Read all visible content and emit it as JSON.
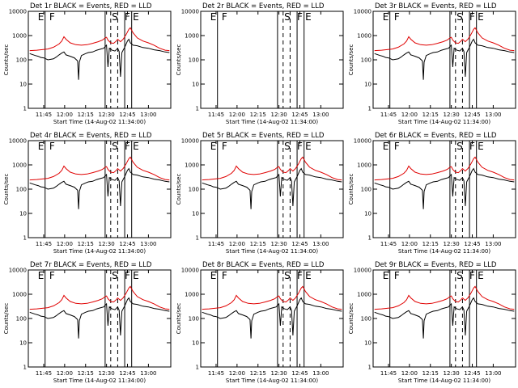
{
  "chart_data": [
    {
      "type": "line",
      "title": "Det 1r  BLACK = Events, RED = LLD",
      "ylabel": "Counts/sec",
      "xlabel": "Start Time (14-Aug-02 11:34:00)",
      "yscale": "log",
      "ylim": [
        1,
        10000
      ],
      "x_ticks": [
        "11:45",
        "12:00",
        "12:15",
        "12:30",
        "12:45",
        "13:00"
      ],
      "y_ticks": [
        "1",
        "10",
        "100",
        "1000",
        "10000"
      ],
      "markers": [
        "E",
        "F",
        "S",
        "F",
        "E"
      ],
      "series": [
        {
          "name": "Events",
          "color": "#000000"
        },
        {
          "name": "LLD",
          "color": "#e00000"
        }
      ]
    },
    {
      "type": "line",
      "title": "Det 2r  BLACK = Events, RED = LLD",
      "ylabel": "Counts/sec",
      "xlabel": "Start Time (14-Aug-02 11:34:00)",
      "yscale": "log",
      "ylim": [
        1,
        10000
      ],
      "x_ticks": [
        "11:45",
        "12:00",
        "12:15",
        "12:30",
        "12:45",
        "13:00"
      ],
      "y_ticks": [
        "1",
        "10",
        "100",
        "1000",
        "10000"
      ],
      "markers": [
        "E",
        "F",
        "S",
        "F",
        "E"
      ],
      "series": []
    },
    {
      "type": "line",
      "title": "Det 3r  BLACK = Events, RED = LLD",
      "ylabel": "Counts/sec",
      "xlabel": "Start Time (14-Aug-02 11:34:00)",
      "yscale": "log",
      "ylim": [
        1,
        10000
      ],
      "x_ticks": [
        "11:45",
        "12:00",
        "12:15",
        "12:30",
        "12:45",
        "13:00"
      ],
      "y_ticks": [
        "1",
        "10",
        "100",
        "1000",
        "10000"
      ],
      "markers": [
        "E",
        "F",
        "S",
        "F",
        "E"
      ],
      "series": [
        {
          "name": "Events",
          "color": "#000000"
        },
        {
          "name": "LLD",
          "color": "#e00000"
        }
      ]
    },
    {
      "type": "line",
      "title": "Det 4r  BLACK = Events, RED = LLD",
      "ylabel": "Counts/sec",
      "xlabel": "Start Time (14-Aug-02 11:34:00)",
      "yscale": "log",
      "ylim": [
        1,
        10000
      ],
      "x_ticks": [
        "11:45",
        "12:00",
        "12:15",
        "12:30",
        "12:45",
        "13:00"
      ],
      "y_ticks": [
        "1",
        "10",
        "100",
        "1000",
        "10000"
      ],
      "markers": [
        "E",
        "F",
        "S",
        "F",
        "E"
      ],
      "series": [
        {
          "name": "Events",
          "color": "#000000"
        },
        {
          "name": "LLD",
          "color": "#e00000"
        }
      ]
    },
    {
      "type": "line",
      "title": "Det 5r  BLACK = Events, RED = LLD",
      "ylabel": "Counts/sec",
      "xlabel": "Start Time (14-Aug-02 11:34:00)",
      "yscale": "log",
      "ylim": [
        1,
        10000
      ],
      "x_ticks": [
        "11:45",
        "12:00",
        "12:15",
        "12:30",
        "12:45",
        "13:00"
      ],
      "y_ticks": [
        "1",
        "10",
        "100",
        "1000",
        "10000"
      ],
      "markers": [
        "E",
        "F",
        "S",
        "F",
        "E"
      ],
      "series": [
        {
          "name": "Events",
          "color": "#000000"
        },
        {
          "name": "LLD",
          "color": "#e00000"
        }
      ]
    },
    {
      "type": "line",
      "title": "Det 6r  BLACK = Events, RED = LLD",
      "ylabel": "Counts/sec",
      "xlabel": "Start Time (14-Aug-02 11:34:00)",
      "yscale": "log",
      "ylim": [
        1,
        10000
      ],
      "x_ticks": [
        "11:45",
        "12:00",
        "12:15",
        "12:30",
        "12:45",
        "13:00"
      ],
      "y_ticks": [
        "1",
        "10",
        "100",
        "1000",
        "10000"
      ],
      "markers": [
        "E",
        "F",
        "S",
        "F",
        "E"
      ],
      "series": [
        {
          "name": "Events",
          "color": "#000000"
        },
        {
          "name": "LLD",
          "color": "#e00000"
        }
      ]
    },
    {
      "type": "line",
      "title": "Det 7r  BLACK = Events, RED = LLD",
      "ylabel": "Counts/sec",
      "xlabel": "Start Time (14-Aug-02 11:34:00)",
      "yscale": "log",
      "ylim": [
        1,
        10000
      ],
      "x_ticks": [
        "11:45",
        "12:00",
        "12:15",
        "12:30",
        "12:45",
        "13:00"
      ],
      "y_ticks": [
        "1",
        "10",
        "100",
        "1000",
        "10000"
      ],
      "markers": [
        "E",
        "F",
        "S",
        "F",
        "E"
      ],
      "series": [
        {
          "name": "Events",
          "color": "#000000"
        },
        {
          "name": "LLD",
          "color": "#e00000"
        }
      ]
    },
    {
      "type": "line",
      "title": "Det 8r  BLACK = Events, RED = LLD",
      "ylabel": "Counts/sec",
      "xlabel": "Start Time (14-Aug-02 11:34:00)",
      "yscale": "log",
      "ylim": [
        1,
        10000
      ],
      "x_ticks": [
        "11:45",
        "12:00",
        "12:15",
        "12:30",
        "12:45",
        "13:00"
      ],
      "y_ticks": [
        "1",
        "10",
        "100",
        "1000",
        "10000"
      ],
      "markers": [
        "E",
        "F",
        "S",
        "F",
        "E"
      ],
      "series": [
        {
          "name": "Events",
          "color": "#000000"
        },
        {
          "name": "LLD",
          "color": "#e00000"
        }
      ]
    },
    {
      "type": "line",
      "title": "Det 9r  BLACK = Events, RED = LLD",
      "ylabel": "Counts/sec",
      "xlabel": "Start Time (14-Aug-02 11:34:00)",
      "yscale": "log",
      "ylim": [
        1,
        10000
      ],
      "x_ticks": [
        "11:45",
        "12:00",
        "12:15",
        "12:30",
        "12:45",
        "13:00"
      ],
      "y_ticks": [
        "1",
        "10",
        "100",
        "1000",
        "10000"
      ],
      "markers": [
        "E",
        "F",
        "S",
        "F",
        "E"
      ],
      "series": [
        {
          "name": "Events",
          "color": "#000000"
        },
        {
          "name": "LLD",
          "color": "#e00000"
        }
      ]
    }
  ],
  "traces": {
    "time_range": [
      "11:34",
      "13:16"
    ],
    "lld": [
      [
        "11:35",
        240
      ],
      [
        "11:40",
        250
      ],
      [
        "11:48",
        280
      ],
      [
        "11:52",
        330
      ],
      [
        "11:56",
        450
      ],
      [
        "11:58",
        600
      ],
      [
        "11:59.5",
        900
      ],
      [
        "12:01",
        700
      ],
      [
        "12:04",
        500
      ],
      [
        "12:08",
        420
      ],
      [
        "12:12",
        400
      ],
      [
        "12:16",
        420
      ],
      [
        "12:20",
        480
      ],
      [
        "12:24",
        560
      ],
      [
        "12:27",
        650
      ],
      [
        "12:29",
        800
      ],
      [
        "12:30",
        850
      ],
      [
        "12:31",
        650
      ],
      [
        "12:33",
        500
      ],
      [
        "12:35",
        480
      ],
      [
        "12:37",
        600
      ],
      [
        "12:38",
        700
      ],
      [
        "12:40",
        560
      ],
      [
        "12:42",
        720
      ],
      [
        "12:44",
        1100
      ],
      [
        "12:46",
        1800
      ],
      [
        "12:47",
        2100
      ],
      [
        "12:49",
        1300
      ],
      [
        "12:52",
        800
      ],
      [
        "12:56",
        600
      ],
      [
        "13:00",
        500
      ],
      [
        "13:04",
        400
      ],
      [
        "13:08",
        300
      ],
      [
        "13:12",
        250
      ],
      [
        "13:15",
        240
      ]
    ],
    "events": [
      [
        "11:35",
        180
      ],
      [
        "11:39",
        150
      ],
      [
        "11:41",
        140
      ],
      [
        "11:43",
        125
      ],
      [
        "11:45",
        120
      ],
      [
        "11:48",
        100
      ],
      [
        "11:52",
        110
      ],
      [
        "11:54",
        130
      ],
      [
        "11:56",
        160
      ],
      [
        "11:58",
        190
      ],
      [
        "11:59.5",
        210
      ],
      [
        "12:01",
        160
      ],
      [
        "12:04",
        140
      ],
      [
        "12:07",
        120
      ],
      [
        "12:09.3",
        90
      ],
      [
        "12:10",
        15
      ],
      [
        "12:10.5",
        80
      ],
      [
        "12:12",
        150
      ],
      [
        "12:15",
        180
      ],
      [
        "12:17",
        200
      ],
      [
        "12:20",
        210
      ],
      [
        "12:23",
        250
      ],
      [
        "12:26",
        280
      ],
      [
        "12:28",
        300
      ],
      [
        "12:29",
        350
      ],
      [
        "12:30",
        400
      ],
      [
        "12:31",
        50
      ],
      [
        "12:32",
        300
      ],
      [
        "12:34",
        250
      ],
      [
        "12:36",
        230
      ],
      [
        "12:38",
        300
      ],
      [
        "12:39",
        220
      ],
      [
        "12:40",
        20
      ],
      [
        "12:41",
        200
      ],
      [
        "12:43",
        330
      ],
      [
        "12:45",
        600
      ],
      [
        "12:46",
        700
      ],
      [
        "12:47",
        500
      ],
      [
        "12:49",
        400
      ],
      [
        "12:52",
        380
      ],
      [
        "12:56",
        320
      ],
      [
        "13:00",
        300
      ],
      [
        "13:04",
        260
      ],
      [
        "13:08",
        240
      ],
      [
        "13:12",
        210
      ],
      [
        "13:15",
        200
      ]
    ],
    "solid_lines": [
      "11:46",
      "12:29",
      "12:43",
      "12:48"
    ],
    "dashed_lines": [
      "12:33",
      "12:38"
    ],
    "marker_times": [
      "11:43",
      "11:51",
      "12:36",
      "12:45",
      "12:51"
    ]
  }
}
